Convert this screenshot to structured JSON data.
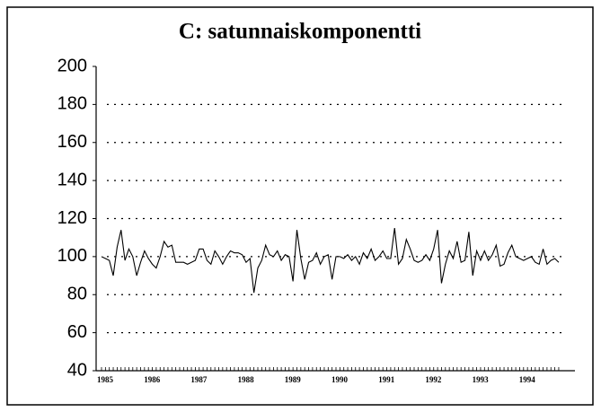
{
  "chart_data": {
    "type": "line",
    "title": "C: satunnaiskomponentti",
    "categories": [
      "1985",
      null,
      null,
      null,
      null,
      null,
      null,
      null,
      null,
      null,
      null,
      null,
      "1986",
      null,
      null,
      null,
      null,
      null,
      null,
      null,
      null,
      null,
      null,
      null,
      "1987",
      null,
      null,
      null,
      null,
      null,
      null,
      null,
      null,
      null,
      null,
      null,
      "1988",
      null,
      null,
      null,
      null,
      null,
      null,
      null,
      null,
      null,
      null,
      null,
      "1989",
      null,
      null,
      null,
      null,
      null,
      null,
      null,
      null,
      null,
      null,
      null,
      "1990",
      null,
      null,
      null,
      null,
      null,
      null,
      null,
      null,
      null,
      null,
      null,
      "1991",
      null,
      null,
      null,
      null,
      null,
      null,
      null,
      null,
      null,
      null,
      null,
      "1992",
      null,
      null,
      null,
      null,
      null,
      null,
      null,
      null,
      null,
      null,
      null,
      "1993",
      null,
      null,
      null,
      null,
      null,
      null,
      null,
      null,
      null,
      null,
      null,
      "1994",
      null,
      null,
      null,
      null,
      null,
      null,
      null,
      null,
      null
    ],
    "values": [
      100,
      99,
      98,
      90,
      105,
      114,
      98,
      104,
      100,
      90,
      97,
      103,
      99,
      96,
      94,
      100,
      108,
      105,
      106,
      97,
      97,
      97,
      96,
      97,
      98,
      104,
      104,
      98,
      96,
      103,
      100,
      96,
      100,
      103,
      102,
      102,
      101,
      97,
      99,
      81,
      94,
      98,
      106,
      101,
      100,
      103,
      98,
      101,
      100,
      87,
      114,
      99,
      88,
      97,
      98,
      102,
      96,
      100,
      101,
      88,
      100,
      100,
      99,
      101,
      98,
      100,
      96,
      102,
      99,
      104,
      98,
      100,
      103,
      99,
      99,
      115,
      96,
      99,
      109,
      104,
      98,
      97,
      98,
      101,
      98,
      104,
      114,
      86,
      96,
      103,
      99,
      108,
      97,
      98,
      113,
      90,
      103,
      98,
      103,
      98,
      101,
      106,
      95,
      96,
      102,
      106,
      100,
      99,
      98,
      99,
      100,
      97,
      96,
      104,
      96,
      98,
      99,
      97
    ],
    "color": "#000000",
    "ylim": [
      40,
      200
    ],
    "yticks": [
      40,
      60,
      80,
      100,
      120,
      140,
      160,
      180,
      200
    ],
    "grid": true
  }
}
